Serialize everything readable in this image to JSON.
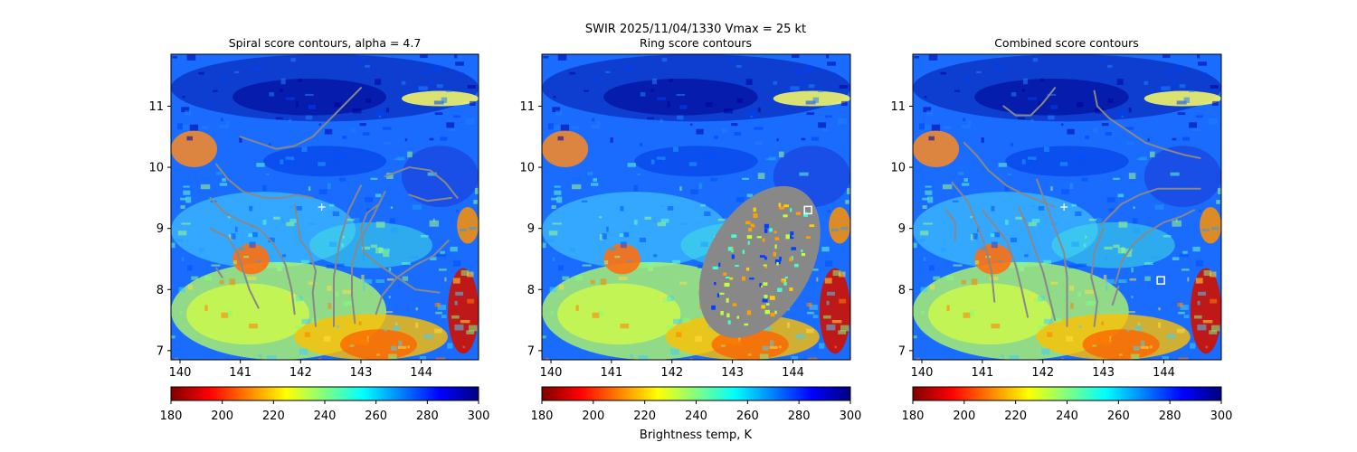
{
  "suptitle_line1": "SWIR  2025/11/04/1330    Vmax = 25 kt",
  "colorbar_label": "Brightness temp, K",
  "colormap_stops": [
    "#7f0000",
    "#ff0000",
    "#ff8000",
    "#ffff00",
    "#80ff80",
    "#00ffff",
    "#0080ff",
    "#0000ff",
    "#00007f"
  ],
  "contour_color": "#888888",
  "marker_color": "#ffffff",
  "chart_data": [
    {
      "type": "heatmap",
      "title": "Spiral score contours, alpha =  4.7",
      "xlim": [
        139.85,
        144.95
      ],
      "ylim": [
        6.85,
        11.85
      ],
      "xticks": [
        140,
        141,
        142,
        143,
        144
      ],
      "yticks": [
        7,
        8,
        9,
        10,
        11
      ],
      "colorbar": {
        "vmin": 180,
        "vmax": 300,
        "ticks": [
          180,
          200,
          220,
          240,
          260,
          280,
          300
        ]
      },
      "center_marker": {
        "symbol": "+",
        "lon": 142.35,
        "lat": 9.35
      },
      "contours": [
        [
          [
            141.0,
            10.5
          ],
          [
            141.3,
            10.4
          ],
          [
            141.6,
            10.3
          ],
          [
            141.9,
            10.35
          ],
          [
            142.2,
            10.5
          ],
          [
            142.5,
            10.8
          ],
          [
            142.8,
            11.1
          ],
          [
            143.0,
            11.3
          ]
        ],
        [
          [
            140.6,
            10.05
          ],
          [
            140.8,
            9.8
          ],
          [
            141.05,
            9.6
          ],
          [
            141.4,
            9.5
          ],
          [
            141.7,
            9.5
          ],
          [
            141.95,
            9.55
          ],
          [
            142.2,
            9.5
          ]
        ],
        [
          [
            140.5,
            9.5
          ],
          [
            140.75,
            9.25
          ],
          [
            141.05,
            9.1
          ],
          [
            141.3,
            9.0
          ],
          [
            141.55,
            8.75
          ],
          [
            141.75,
            8.4
          ],
          [
            141.85,
            8.0
          ],
          [
            141.9,
            7.6
          ]
        ],
        [
          [
            140.5,
            9.0
          ],
          [
            140.8,
            8.85
          ],
          [
            140.95,
            8.6
          ],
          [
            141.05,
            8.3
          ],
          [
            141.15,
            8.0
          ],
          [
            141.3,
            7.7
          ]
        ],
        [
          [
            140.6,
            8.35
          ],
          [
            140.7,
            8.2
          ]
        ],
        [
          [
            141.9,
            9.4
          ],
          [
            141.95,
            9.1
          ],
          [
            142.0,
            8.8
          ],
          [
            142.15,
            8.6
          ],
          [
            142.25,
            8.3
          ],
          [
            142.2,
            7.95
          ],
          [
            142.25,
            7.4
          ]
        ],
        [
          [
            143.0,
            9.7
          ],
          [
            142.8,
            9.3
          ],
          [
            142.65,
            8.8
          ],
          [
            142.55,
            8.2
          ],
          [
            142.55,
            7.6
          ],
          [
            142.55,
            7.4
          ]
        ],
        [
          [
            143.4,
            9.6
          ],
          [
            143.2,
            9.2
          ],
          [
            142.95,
            8.75
          ],
          [
            142.85,
            8.4
          ],
          [
            142.85,
            7.9
          ],
          [
            142.9,
            7.45
          ]
        ],
        [
          [
            143.3,
            9.4
          ],
          [
            143.1,
            9.25
          ],
          [
            143.0,
            9.0
          ],
          [
            143.05,
            8.6
          ],
          [
            143.3,
            8.4
          ],
          [
            143.6,
            8.2
          ],
          [
            143.9,
            8.0
          ],
          [
            144.3,
            7.95
          ]
        ],
        [
          [
            143.4,
            9.85
          ],
          [
            143.8,
            10.0
          ],
          [
            144.15,
            9.95
          ],
          [
            144.4,
            9.75
          ],
          [
            144.6,
            9.5
          ]
        ],
        [
          [
            143.8,
            9.55
          ],
          [
            144.1,
            9.45
          ],
          [
            144.5,
            9.5
          ]
        ],
        [
          [
            143.25,
            7.6
          ],
          [
            143.35,
            7.9
          ],
          [
            143.6,
            8.2
          ],
          [
            143.9,
            8.4
          ],
          [
            144.2,
            8.55
          ],
          [
            144.45,
            8.8
          ]
        ]
      ]
    },
    {
      "type": "heatmap",
      "title": "Ring score contours",
      "xlim": [
        139.85,
        144.95
      ],
      "ylim": [
        6.85,
        11.85
      ],
      "xticks": [
        140,
        141,
        142,
        143,
        144
      ],
      "yticks": [
        7,
        8,
        9,
        10,
        11
      ],
      "colorbar": {
        "vmin": 180,
        "vmax": 300,
        "ticks": [
          180,
          200,
          220,
          240,
          260,
          280,
          300
        ]
      },
      "ring_region": {
        "center_lon": 143.45,
        "center_lat": 8.45,
        "width_deg": 1.7,
        "height_deg": 2.7,
        "rotation_deg": 30
      },
      "center_marker": {
        "symbol": "square",
        "lon": 144.25,
        "lat": 9.3
      }
    },
    {
      "type": "heatmap",
      "title": "Combined score contours",
      "xlim": [
        139.85,
        144.95
      ],
      "ylim": [
        6.85,
        11.85
      ],
      "xticks": [
        140,
        141,
        142,
        143,
        144
      ],
      "yticks": [
        7,
        8,
        9,
        10,
        11
      ],
      "colorbar": {
        "vmin": 180,
        "vmax": 300,
        "ticks": [
          180,
          200,
          220,
          240,
          260,
          280,
          300
        ]
      },
      "center_marker": {
        "symbol": "+",
        "lon": 142.35,
        "lat": 9.35
      },
      "center_marker_2": {
        "symbol": "square",
        "lon": 143.95,
        "lat": 8.15
      },
      "contours": [
        [
          [
            141.35,
            11.0
          ],
          [
            141.55,
            10.85
          ],
          [
            141.8,
            10.85
          ],
          [
            142.0,
            11.05
          ],
          [
            142.2,
            11.3
          ]
        ],
        [
          [
            142.85,
            11.25
          ],
          [
            142.9,
            11.0
          ],
          [
            143.1,
            10.8
          ],
          [
            143.4,
            10.6
          ],
          [
            143.7,
            10.4
          ],
          [
            144.0,
            10.3
          ],
          [
            144.35,
            10.2
          ],
          [
            144.6,
            10.15
          ]
        ],
        [
          [
            140.7,
            10.4
          ],
          [
            140.9,
            10.2
          ],
          [
            141.1,
            9.95
          ],
          [
            141.4,
            9.7
          ],
          [
            141.7,
            9.55
          ],
          [
            141.95,
            9.45
          ],
          [
            142.2,
            9.35
          ]
        ],
        [
          [
            140.5,
            9.75
          ],
          [
            140.75,
            9.45
          ],
          [
            140.9,
            9.1
          ],
          [
            141.05,
            8.7
          ],
          [
            141.15,
            8.3
          ],
          [
            141.2,
            7.8
          ]
        ],
        [
          [
            140.4,
            9.3
          ],
          [
            140.55,
            9.1
          ],
          [
            140.55,
            8.8
          ]
        ],
        [
          [
            141.0,
            9.3
          ],
          [
            141.2,
            9.05
          ],
          [
            141.4,
            8.8
          ],
          [
            141.55,
            8.4
          ],
          [
            141.65,
            8.0
          ],
          [
            141.75,
            7.55
          ]
        ],
        [
          [
            141.6,
            9.35
          ],
          [
            141.75,
            9.0
          ],
          [
            141.85,
            8.7
          ],
          [
            142.0,
            8.3
          ],
          [
            142.1,
            7.9
          ],
          [
            142.2,
            7.5
          ]
        ],
        [
          [
            141.9,
            9.8
          ],
          [
            142.05,
            9.4
          ],
          [
            142.2,
            9.0
          ],
          [
            142.35,
            8.6
          ],
          [
            142.4,
            8.2
          ],
          [
            142.4,
            7.4
          ]
        ],
        [
          [
            143.0,
            9.0
          ],
          [
            142.85,
            8.6
          ],
          [
            142.8,
            8.2
          ],
          [
            142.9,
            7.8
          ],
          [
            142.85,
            7.4
          ]
        ],
        [
          [
            142.95,
            9.05
          ],
          [
            143.3,
            9.4
          ],
          [
            143.6,
            9.55
          ],
          [
            143.9,
            9.65
          ],
          [
            144.3,
            9.65
          ],
          [
            144.6,
            9.65
          ]
        ],
        [
          [
            143.2,
            8.1
          ],
          [
            143.3,
            8.45
          ],
          [
            143.5,
            8.75
          ],
          [
            143.75,
            8.95
          ],
          [
            144.0,
            9.1
          ],
          [
            144.3,
            9.2
          ],
          [
            144.5,
            9.3
          ]
        ],
        [
          [
            143.15,
            7.75
          ],
          [
            143.25,
            8.05
          ]
        ]
      ]
    }
  ]
}
